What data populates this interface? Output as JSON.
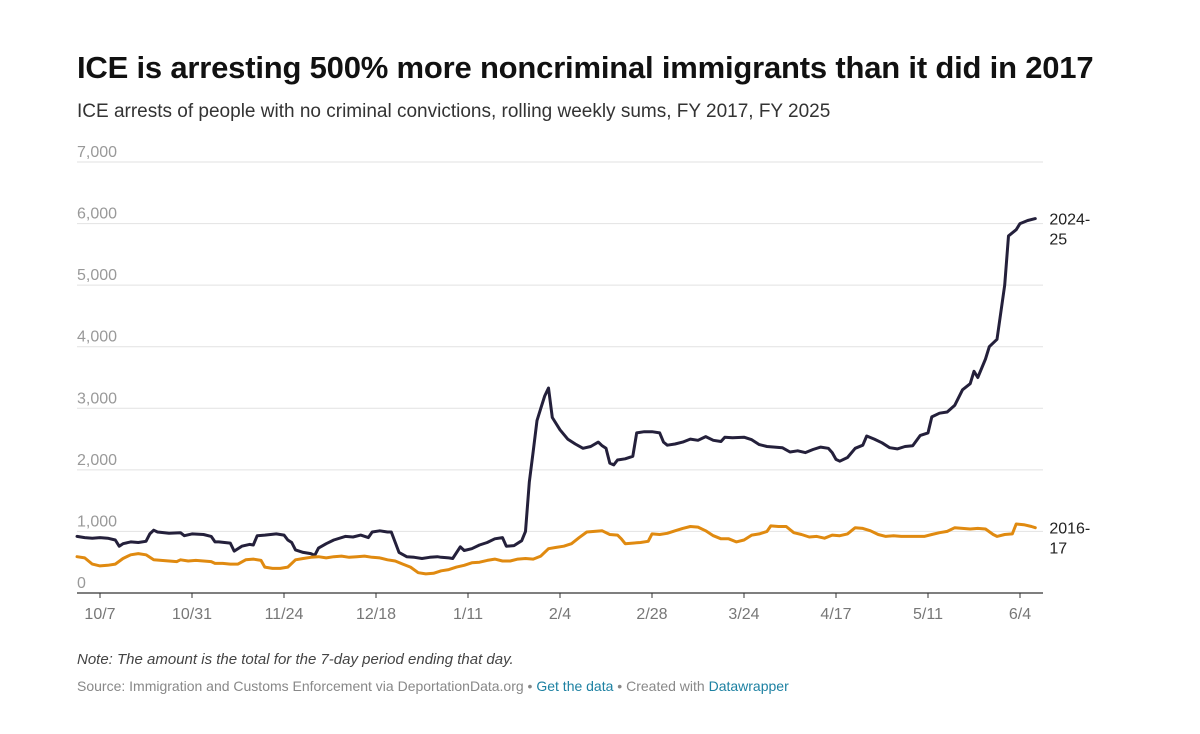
{
  "title": "ICE is arresting 500% more noncriminal immigrants than it did in 2017",
  "subtitle": "ICE arrests of people with no criminal convictions, rolling weekly sums, FY 2017, FY 2025",
  "note": "Note: The amount is the total for the 7-day period ending that day.",
  "footer": {
    "source": "Source: Immigration and Customs Enforcement via DeportationData.org",
    "sep": "•",
    "get_data": "Get the data",
    "created_with": "Created with",
    "tool": "Datawrapper"
  },
  "chart_data": {
    "type": "line",
    "x_ticks": [
      "10/7",
      "10/31",
      "11/24",
      "12/18",
      "1/11",
      "2/4",
      "2/28",
      "3/24",
      "4/17",
      "5/11",
      "6/4"
    ],
    "x_tick_days": [
      6,
      30,
      54,
      78,
      102,
      126,
      150,
      174,
      198,
      222,
      246
    ],
    "x_range_days": [
      0,
      252
    ],
    "y_ticks": [
      0,
      1000,
      2000,
      3000,
      4000,
      5000,
      6000,
      7000
    ],
    "y_tick_labels": [
      "0",
      "1,000",
      "2,000",
      "3,000",
      "4,000",
      "5,000",
      "6,000",
      "7,000"
    ],
    "ylim": [
      0,
      7000
    ],
    "grid": true,
    "colors": {
      "s2025": "#24203b",
      "s2017": "#e08a10",
      "grid": "#e2e2e2",
      "axis": "#333333",
      "tick": "#777777"
    },
    "series": [
      {
        "name": "2024-25",
        "label_lines": [
          "2024-",
          "25"
        ],
        "color": "#24203b",
        "points": [
          [
            0,
            920
          ],
          [
            2,
            900
          ],
          [
            4,
            890
          ],
          [
            6,
            900
          ],
          [
            8,
            890
          ],
          [
            10,
            860
          ],
          [
            11,
            760
          ],
          [
            12,
            800
          ],
          [
            14,
            830
          ],
          [
            16,
            820
          ],
          [
            18,
            840
          ],
          [
            19,
            960
          ],
          [
            20,
            1020
          ],
          [
            21,
            990
          ],
          [
            24,
            970
          ],
          [
            27,
            980
          ],
          [
            28,
            930
          ],
          [
            30,
            960
          ],
          [
            33,
            950
          ],
          [
            35,
            920
          ],
          [
            36,
            830
          ],
          [
            37,
            830
          ],
          [
            40,
            810
          ],
          [
            41,
            680
          ],
          [
            43,
            760
          ],
          [
            45,
            790
          ],
          [
            46,
            780
          ],
          [
            47,
            930
          ],
          [
            49,
            940
          ],
          [
            52,
            960
          ],
          [
            54,
            940
          ],
          [
            55,
            860
          ],
          [
            56,
            820
          ],
          [
            57,
            700
          ],
          [
            59,
            660
          ],
          [
            61,
            640
          ],
          [
            62,
            610
          ],
          [
            63,
            730
          ],
          [
            65,
            800
          ],
          [
            67,
            860
          ],
          [
            70,
            920
          ],
          [
            72,
            910
          ],
          [
            74,
            940
          ],
          [
            76,
            900
          ],
          [
            77,
            990
          ],
          [
            79,
            1010
          ],
          [
            81,
            990
          ],
          [
            82,
            990
          ],
          [
            84,
            660
          ],
          [
            86,
            590
          ],
          [
            88,
            580
          ],
          [
            90,
            560
          ],
          [
            92,
            580
          ],
          [
            94,
            590
          ],
          [
            95,
            580
          ],
          [
            97,
            570
          ],
          [
            98,
            560
          ],
          [
            100,
            750
          ],
          [
            101,
            690
          ],
          [
            103,
            720
          ],
          [
            105,
            780
          ],
          [
            107,
            820
          ],
          [
            109,
            880
          ],
          [
            111,
            900
          ],
          [
            112,
            760
          ],
          [
            114,
            770
          ],
          [
            116,
            850
          ],
          [
            117,
            1000
          ],
          [
            118,
            1800
          ],
          [
            119,
            2300
          ],
          [
            120,
            2800
          ],
          [
            121,
            3000
          ],
          [
            122,
            3200
          ],
          [
            123,
            3330
          ],
          [
            124,
            2850
          ],
          [
            126,
            2650
          ],
          [
            128,
            2500
          ],
          [
            130,
            2420
          ],
          [
            132,
            2350
          ],
          [
            134,
            2380
          ],
          [
            136,
            2450
          ],
          [
            137,
            2390
          ],
          [
            138,
            2350
          ],
          [
            139,
            2110
          ],
          [
            140,
            2080
          ],
          [
            141,
            2160
          ],
          [
            143,
            2180
          ],
          [
            145,
            2220
          ],
          [
            146,
            2600
          ],
          [
            148,
            2620
          ],
          [
            150,
            2620
          ],
          [
            152,
            2600
          ],
          [
            153,
            2450
          ],
          [
            154,
            2400
          ],
          [
            156,
            2420
          ],
          [
            158,
            2450
          ],
          [
            160,
            2500
          ],
          [
            162,
            2480
          ],
          [
            164,
            2540
          ],
          [
            166,
            2480
          ],
          [
            168,
            2460
          ],
          [
            169,
            2530
          ],
          [
            171,
            2520
          ],
          [
            174,
            2530
          ],
          [
            176,
            2490
          ],
          [
            178,
            2410
          ],
          [
            180,
            2380
          ],
          [
            182,
            2370
          ],
          [
            184,
            2360
          ],
          [
            186,
            2290
          ],
          [
            188,
            2310
          ],
          [
            190,
            2280
          ],
          [
            192,
            2330
          ],
          [
            194,
            2370
          ],
          [
            196,
            2350
          ],
          [
            197,
            2280
          ],
          [
            198,
            2170
          ],
          [
            199,
            2140
          ],
          [
            201,
            2200
          ],
          [
            203,
            2350
          ],
          [
            205,
            2400
          ],
          [
            206,
            2550
          ],
          [
            208,
            2500
          ],
          [
            210,
            2440
          ],
          [
            212,
            2360
          ],
          [
            214,
            2340
          ],
          [
            216,
            2380
          ],
          [
            218,
            2390
          ],
          [
            220,
            2560
          ],
          [
            222,
            2600
          ],
          [
            223,
            2860
          ],
          [
            225,
            2920
          ],
          [
            227,
            2940
          ],
          [
            229,
            3050
          ],
          [
            231,
            3300
          ],
          [
            233,
            3400
          ],
          [
            234,
            3600
          ],
          [
            235,
            3500
          ],
          [
            237,
            3800
          ],
          [
            238,
            4000
          ],
          [
            240,
            4120
          ],
          [
            242,
            5000
          ],
          [
            243,
            5800
          ],
          [
            245,
            5900
          ],
          [
            246,
            6000
          ],
          [
            248,
            6050
          ],
          [
            250,
            6080
          ]
        ]
      },
      {
        "name": "2016-17",
        "label_lines": [
          "2016-",
          "17"
        ],
        "color": "#e08a10",
        "points": [
          [
            0,
            590
          ],
          [
            2,
            570
          ],
          [
            4,
            470
          ],
          [
            6,
            440
          ],
          [
            8,
            450
          ],
          [
            10,
            470
          ],
          [
            12,
            560
          ],
          [
            14,
            620
          ],
          [
            16,
            640
          ],
          [
            18,
            620
          ],
          [
            20,
            540
          ],
          [
            22,
            530
          ],
          [
            24,
            520
          ],
          [
            26,
            510
          ],
          [
            27,
            540
          ],
          [
            29,
            520
          ],
          [
            31,
            530
          ],
          [
            33,
            520
          ],
          [
            35,
            510
          ],
          [
            36,
            480
          ],
          [
            38,
            480
          ],
          [
            40,
            470
          ],
          [
            42,
            470
          ],
          [
            44,
            540
          ],
          [
            46,
            550
          ],
          [
            48,
            530
          ],
          [
            49,
            420
          ],
          [
            51,
            400
          ],
          [
            53,
            400
          ],
          [
            55,
            420
          ],
          [
            57,
            540
          ],
          [
            59,
            560
          ],
          [
            61,
            580
          ],
          [
            63,
            590
          ],
          [
            65,
            570
          ],
          [
            67,
            590
          ],
          [
            69,
            600
          ],
          [
            71,
            580
          ],
          [
            73,
            590
          ],
          [
            75,
            600
          ],
          [
            77,
            580
          ],
          [
            79,
            570
          ],
          [
            81,
            540
          ],
          [
            83,
            520
          ],
          [
            85,
            470
          ],
          [
            87,
            420
          ],
          [
            89,
            330
          ],
          [
            91,
            310
          ],
          [
            93,
            320
          ],
          [
            95,
            360
          ],
          [
            97,
            380
          ],
          [
            99,
            420
          ],
          [
            101,
            450
          ],
          [
            103,
            490
          ],
          [
            105,
            500
          ],
          [
            107,
            530
          ],
          [
            109,
            550
          ],
          [
            111,
            520
          ],
          [
            113,
            520
          ],
          [
            115,
            550
          ],
          [
            117,
            560
          ],
          [
            119,
            550
          ],
          [
            121,
            600
          ],
          [
            123,
            720
          ],
          [
            125,
            740
          ],
          [
            127,
            760
          ],
          [
            129,
            800
          ],
          [
            131,
            900
          ],
          [
            133,
            990
          ],
          [
            135,
            1000
          ],
          [
            137,
            1010
          ],
          [
            139,
            950
          ],
          [
            141,
            940
          ],
          [
            142,
            880
          ],
          [
            143,
            800
          ],
          [
            145,
            810
          ],
          [
            147,
            820
          ],
          [
            149,
            840
          ],
          [
            150,
            960
          ],
          [
            152,
            950
          ],
          [
            154,
            970
          ],
          [
            156,
            1010
          ],
          [
            158,
            1050
          ],
          [
            160,
            1080
          ],
          [
            162,
            1070
          ],
          [
            164,
            1010
          ],
          [
            166,
            930
          ],
          [
            168,
            880
          ],
          [
            170,
            880
          ],
          [
            172,
            830
          ],
          [
            174,
            860
          ],
          [
            176,
            940
          ],
          [
            178,
            960
          ],
          [
            180,
            1000
          ],
          [
            181,
            1090
          ],
          [
            183,
            1080
          ],
          [
            185,
            1080
          ],
          [
            187,
            980
          ],
          [
            189,
            950
          ],
          [
            191,
            910
          ],
          [
            193,
            920
          ],
          [
            195,
            890
          ],
          [
            197,
            940
          ],
          [
            199,
            930
          ],
          [
            201,
            960
          ],
          [
            203,
            1060
          ],
          [
            205,
            1050
          ],
          [
            207,
            1010
          ],
          [
            209,
            950
          ],
          [
            211,
            920
          ],
          [
            213,
            930
          ],
          [
            215,
            920
          ],
          [
            217,
            920
          ],
          [
            219,
            920
          ],
          [
            221,
            920
          ],
          [
            223,
            950
          ],
          [
            225,
            980
          ],
          [
            227,
            1000
          ],
          [
            229,
            1060
          ],
          [
            231,
            1050
          ],
          [
            233,
            1040
          ],
          [
            235,
            1050
          ],
          [
            237,
            1040
          ],
          [
            239,
            950
          ],
          [
            240,
            920
          ],
          [
            242,
            950
          ],
          [
            244,
            960
          ],
          [
            245,
            1120
          ],
          [
            247,
            1110
          ],
          [
            249,
            1080
          ],
          [
            250,
            1060
          ]
        ]
      }
    ]
  }
}
